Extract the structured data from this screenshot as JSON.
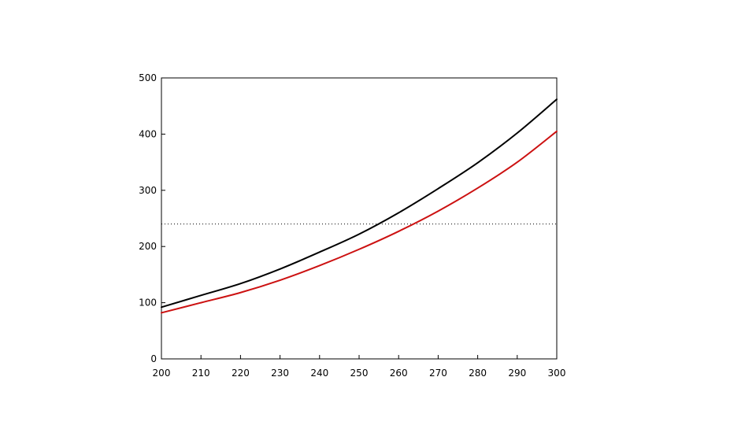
{
  "chart_data": {
    "type": "line",
    "title": "",
    "xlabel": "",
    "ylabel": "",
    "xlim": [
      200,
      300
    ],
    "ylim": [
      0,
      500
    ],
    "x_ticks": [
      "200",
      "210",
      "220",
      "230",
      "240",
      "250",
      "260",
      "270",
      "280",
      "290",
      "300"
    ],
    "y_ticks": [
      "0",
      "100",
      "200",
      "300",
      "400",
      "500"
    ],
    "grid": false,
    "legend": "none",
    "x": [
      200,
      210,
      220,
      230,
      240,
      250,
      260,
      270,
      280,
      290,
      300
    ],
    "series": [
      {
        "color": "#000000",
        "values": [
          92,
          113,
          134,
          160,
          190,
          222,
          260,
          303,
          349,
          402,
          462
        ]
      },
      {
        "color": "#cc1111",
        "values": [
          82,
          100,
          118,
          140,
          166,
          195,
          227,
          263,
          304,
          350,
          405
        ]
      }
    ],
    "reference_line": {
      "y": 240,
      "style": "dotted",
      "color": "#000000"
    }
  }
}
